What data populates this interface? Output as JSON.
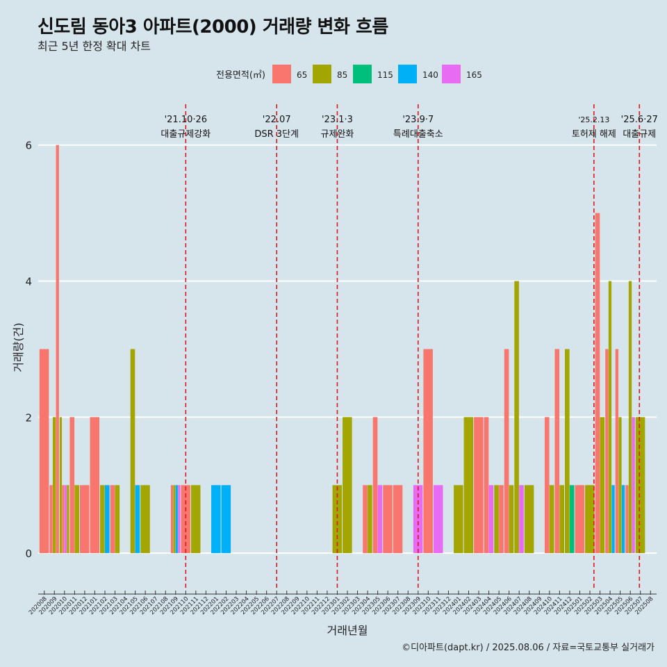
{
  "chart_data": {
    "type": "bar",
    "title": "신도림 동아3 아파트(2000) 거래량 변화 흐름",
    "subtitle": "최근 5년 한정 확대 차트",
    "xlabel": "거래년월",
    "ylabel": "거래량(건)",
    "caption": "©디아파트(dapt.kr) / 2025.08.06 / 자료=국토교통부 실거래가",
    "ylim": [
      -0.55,
      6.6
    ],
    "yticks": [
      0,
      2,
      4,
      6
    ],
    "legend": {
      "title": "전용면적(㎡)",
      "placement": "top",
      "entries": [
        {
          "name": "65",
          "color": "#F8766D"
        },
        {
          "name": "85",
          "color": "#A3A500"
        },
        {
          "name": "115",
          "color": "#00BF7D"
        },
        {
          "name": "140",
          "color": "#00B0F6"
        },
        {
          "name": "165",
          "color": "#E76BF3"
        }
      ]
    },
    "months": [
      "202008",
      "202009",
      "202010",
      "202011",
      "202012",
      "202101",
      "202102",
      "202103",
      "202104",
      "202105",
      "202106",
      "202107",
      "202108",
      "202109",
      "202110",
      "202111",
      "202112",
      "202201",
      "202202",
      "202203",
      "202204",
      "202205",
      "202206",
      "202207",
      "202208",
      "202209",
      "202210",
      "202211",
      "202212",
      "202301",
      "202302",
      "202303",
      "202304",
      "202305",
      "202306",
      "202307",
      "202308",
      "202309",
      "202310",
      "202311",
      "202312",
      "202401",
      "202402",
      "202403",
      "202404",
      "202405",
      "202406",
      "202407",
      "202408",
      "202409",
      "202410",
      "202411",
      "202412",
      "202501",
      "202502",
      "202503",
      "202504",
      "202505",
      "202506",
      "202507",
      "202508"
    ],
    "bars": [
      {
        "month": "202008",
        "series": [
          "65"
        ],
        "values": [
          3
        ]
      },
      {
        "month": "202009",
        "series": [
          "65",
          "85",
          "65"
        ],
        "values": [
          1,
          2,
          6
        ]
      },
      {
        "month": "202010",
        "series": [
          "85",
          "65",
          "165",
          "85"
        ],
        "values": [
          2,
          1,
          1,
          1
        ]
      },
      {
        "month": "202011",
        "series": [
          "65",
          "85"
        ],
        "values": [
          2,
          1
        ]
      },
      {
        "month": "202012",
        "series": [
          "65"
        ],
        "values": [
          1
        ]
      },
      {
        "month": "202101",
        "series": [
          "65"
        ],
        "values": [
          2
        ]
      },
      {
        "month": "202102",
        "series": [
          "85",
          "140"
        ],
        "values": [
          1,
          1
        ]
      },
      {
        "month": "202103",
        "series": [
          "65",
          "85"
        ],
        "values": [
          1,
          1
        ]
      },
      {
        "month": "202105",
        "series": [
          "85",
          "140"
        ],
        "values": [
          3,
          1
        ]
      },
      {
        "month": "202106",
        "series": [
          "85"
        ],
        "values": [
          1
        ]
      },
      {
        "month": "202109",
        "series": [
          "65",
          "85",
          "140",
          "165"
        ],
        "values": [
          1,
          1,
          1,
          1
        ]
      },
      {
        "month": "202110",
        "series": [
          "65"
        ],
        "values": [
          1
        ]
      },
      {
        "month": "202111",
        "series": [
          "85"
        ],
        "values": [
          1
        ]
      },
      {
        "month": "202201",
        "series": [
          "140"
        ],
        "values": [
          1
        ]
      },
      {
        "month": "202202",
        "series": [
          "140"
        ],
        "values": [
          1
        ]
      },
      {
        "month": "202301",
        "series": [
          "85"
        ],
        "values": [
          1
        ]
      },
      {
        "month": "202302",
        "series": [
          "85"
        ],
        "values": [
          2
        ]
      },
      {
        "month": "202304",
        "series": [
          "65",
          "85"
        ],
        "values": [
          1,
          1
        ]
      },
      {
        "month": "202305",
        "series": [
          "65",
          "165"
        ],
        "values": [
          2,
          1
        ]
      },
      {
        "month": "202306",
        "series": [
          "65"
        ],
        "values": [
          1
        ]
      },
      {
        "month": "202307",
        "series": [
          "65"
        ],
        "values": [
          1
        ]
      },
      {
        "month": "202309",
        "series": [
          "165"
        ],
        "values": [
          1
        ]
      },
      {
        "month": "202310",
        "series": [
          "65"
        ],
        "values": [
          3
        ]
      },
      {
        "month": "202311",
        "series": [
          "165"
        ],
        "values": [
          1
        ]
      },
      {
        "month": "202401",
        "series": [
          "85"
        ],
        "values": [
          1
        ]
      },
      {
        "month": "202402",
        "series": [
          "85"
        ],
        "values": [
          2
        ]
      },
      {
        "month": "202403",
        "series": [
          "65"
        ],
        "values": [
          2
        ]
      },
      {
        "month": "202404",
        "series": [
          "65",
          "165"
        ],
        "values": [
          2,
          1
        ]
      },
      {
        "month": "202405",
        "series": [
          "85",
          "65"
        ],
        "values": [
          1,
          1
        ]
      },
      {
        "month": "202406",
        "series": [
          "65",
          "85"
        ],
        "values": [
          3,
          1
        ]
      },
      {
        "month": "202407",
        "series": [
          "85",
          "165"
        ],
        "values": [
          4,
          1
        ]
      },
      {
        "month": "202408",
        "series": [
          "85"
        ],
        "values": [
          1
        ]
      },
      {
        "month": "202410",
        "series": [
          "65",
          "85"
        ],
        "values": [
          2,
          1
        ]
      },
      {
        "month": "202411",
        "series": [
          "65",
          "85"
        ],
        "values": [
          3,
          1
        ]
      },
      {
        "month": "202412",
        "series": [
          "85",
          "115"
        ],
        "values": [
          3,
          1
        ]
      },
      {
        "month": "202501",
        "series": [
          "65"
        ],
        "values": [
          1
        ]
      },
      {
        "month": "202502",
        "series": [
          "85"
        ],
        "values": [
          1
        ]
      },
      {
        "month": "202503",
        "series": [
          "65",
          "85"
        ],
        "values": [
          5,
          2
        ]
      },
      {
        "month": "202504",
        "series": [
          "65",
          "85",
          "140"
        ],
        "values": [
          3,
          4,
          1
        ]
      },
      {
        "month": "202505",
        "series": [
          "65",
          "85",
          "140"
        ],
        "values": [
          3,
          2,
          1
        ]
      },
      {
        "month": "202506",
        "series": [
          "65",
          "85",
          "165"
        ],
        "values": [
          1,
          4,
          2
        ]
      },
      {
        "month": "202507",
        "series": [
          "85"
        ],
        "values": [
          2
        ]
      }
    ],
    "annotations": [
      {
        "month": "202110",
        "pos": 0.0,
        "date": "'21.10·26",
        "label": "대출규제강화"
      },
      {
        "month": "202207",
        "pos": 0.0,
        "date": "'22.07",
        "label": "DSR 3단계"
      },
      {
        "month": "202301",
        "pos": 0.0,
        "date": "'23.1·3",
        "label": "규제완화"
      },
      {
        "month": "202309",
        "pos": 0.0,
        "date": "'23.9·7",
        "label": "특례대출축소"
      },
      {
        "month": "202502",
        "pos": 0.4,
        "date": "'25.2.13",
        "label": "토허제 해제"
      },
      {
        "month": "202506",
        "pos": 0.9,
        "date": "'25.6·27",
        "label": "대출규제"
      }
    ]
  }
}
